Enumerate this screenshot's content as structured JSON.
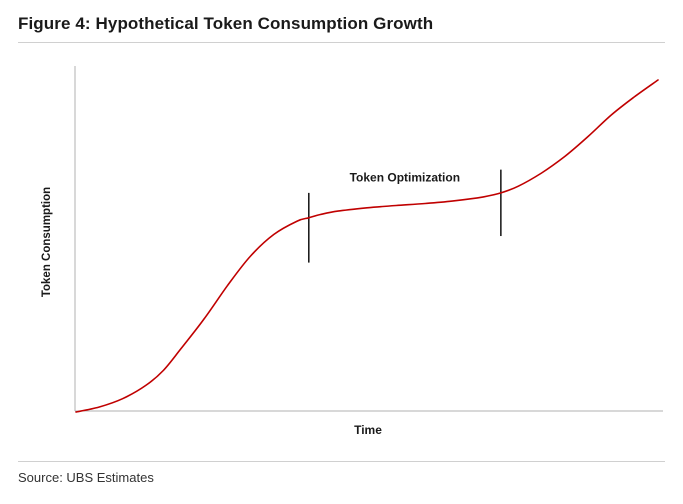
{
  "figure": {
    "title": "Figure 4: Hypothetical Token Consumption Growth",
    "source": "Source: UBS Estimates"
  },
  "colors": {
    "curve": "#c00000",
    "axis": "#b0b0b0",
    "marker": "#111111",
    "text": "#1a1a1a"
  },
  "chart_data": {
    "type": "line",
    "title": "",
    "xlabel": "Time",
    "ylabel": "Token Consumption",
    "xlim": [
      0,
      100
    ],
    "ylim": [
      0,
      100
    ],
    "grid": false,
    "legend": "none",
    "series": [
      {
        "x": [
          0,
          4,
          8,
          12,
          15,
          18,
          22,
          26,
          30,
          34,
          38,
          40,
          42,
          45,
          50,
          55,
          60,
          65,
          70,
          73,
          76,
          80,
          84,
          88,
          92,
          96,
          100
        ],
        "y": [
          0,
          1.5,
          4,
          8,
          12.5,
          19,
          28,
          38,
          47,
          53.5,
          57.5,
          58.5,
          59.5,
          60.5,
          61.5,
          62.2,
          62.8,
          63.6,
          64.8,
          66,
          68,
          72,
          77,
          83,
          89.5,
          95,
          100
        ]
      }
    ],
    "markers": [
      {
        "x": 40,
        "y_low": 45,
        "y_high": 66
      },
      {
        "x": 73,
        "y_low": 53,
        "y_high": 73
      }
    ],
    "annotations": [
      {
        "text": "Token Optimization",
        "x": 56.5,
        "y": 69.5
      }
    ]
  }
}
